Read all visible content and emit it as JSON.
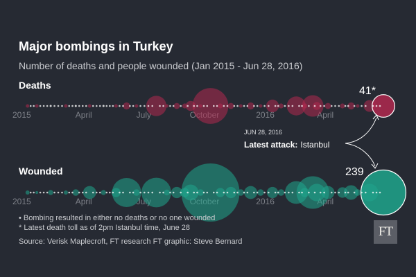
{
  "chart_data": {
    "type": "scatter",
    "title": "Major bombings in Turkey",
    "subtitle": "Number of deaths and people wounded (Jan 2015 - Jun 28, 2016)",
    "x_ticks": [
      "2015",
      "April",
      "July",
      "October",
      "2016",
      "April"
    ],
    "series": [
      {
        "name": "Deaths",
        "color": "#b0284f",
        "points": [
          {
            "date": "2015-01-06",
            "value": 1
          },
          {
            "date": "2015-01-20",
            "value": 1
          },
          {
            "date": "2015-02-10",
            "value": 0
          },
          {
            "date": "2015-03-05",
            "value": 1
          },
          {
            "date": "2015-03-20",
            "value": 0
          },
          {
            "date": "2015-04-10",
            "value": 1
          },
          {
            "date": "2015-05-01",
            "value": 0
          },
          {
            "date": "2015-05-20",
            "value": 1
          },
          {
            "date": "2015-06-05",
            "value": 4
          },
          {
            "date": "2015-06-20",
            "value": 1
          },
          {
            "date": "2015-07-20",
            "value": 33
          },
          {
            "date": "2015-08-05",
            "value": 1
          },
          {
            "date": "2015-08-20",
            "value": 3
          },
          {
            "date": "2015-09-01",
            "value": 2
          },
          {
            "date": "2015-09-10",
            "value": 8
          },
          {
            "date": "2015-09-25",
            "value": 1
          },
          {
            "date": "2015-10-10",
            "value": 103
          },
          {
            "date": "2015-10-25",
            "value": 2
          },
          {
            "date": "2015-11-10",
            "value": 3
          },
          {
            "date": "2015-11-25",
            "value": 1
          },
          {
            "date": "2015-12-10",
            "value": 4
          },
          {
            "date": "2015-12-25",
            "value": 1
          },
          {
            "date": "2016-01-12",
            "value": 13
          },
          {
            "date": "2016-01-25",
            "value": 2
          },
          {
            "date": "2016-02-17",
            "value": 29
          },
          {
            "date": "2016-03-01",
            "value": 2
          },
          {
            "date": "2016-03-13",
            "value": 37
          },
          {
            "date": "2016-03-19",
            "value": 5
          },
          {
            "date": "2016-04-05",
            "value": 3
          },
          {
            "date": "2016-04-27",
            "value": 2
          },
          {
            "date": "2016-05-10",
            "value": 4
          },
          {
            "date": "2016-05-20",
            "value": 1
          },
          {
            "date": "2016-06-07",
            "value": 11
          },
          {
            "date": "2016-06-28",
            "value": 41
          }
        ]
      },
      {
        "name": "Wounded",
        "color": "#1fa58c",
        "points": [
          {
            "date": "2015-01-06",
            "value": 2
          },
          {
            "date": "2015-01-20",
            "value": 1
          },
          {
            "date": "2015-02-10",
            "value": 3
          },
          {
            "date": "2015-03-05",
            "value": 2
          },
          {
            "date": "2015-03-20",
            "value": 5
          },
          {
            "date": "2015-04-10",
            "value": 20
          },
          {
            "date": "2015-05-01",
            "value": 3
          },
          {
            "date": "2015-05-20",
            "value": 10
          },
          {
            "date": "2015-06-05",
            "value": 100
          },
          {
            "date": "2015-06-20",
            "value": 5
          },
          {
            "date": "2015-07-20",
            "value": 104
          },
          {
            "date": "2015-08-05",
            "value": 4
          },
          {
            "date": "2015-08-20",
            "value": 15
          },
          {
            "date": "2015-09-01",
            "value": 10
          },
          {
            "date": "2015-09-10",
            "value": 30
          },
          {
            "date": "2015-09-25",
            "value": 5
          },
          {
            "date": "2015-10-10",
            "value": 400
          },
          {
            "date": "2015-10-25",
            "value": 10
          },
          {
            "date": "2015-11-10",
            "value": 15
          },
          {
            "date": "2015-11-25",
            "value": 5
          },
          {
            "date": "2015-12-10",
            "value": 20
          },
          {
            "date": "2015-12-25",
            "value": 5
          },
          {
            "date": "2016-01-12",
            "value": 15
          },
          {
            "date": "2016-01-25",
            "value": 5
          },
          {
            "date": "2016-02-17",
            "value": 61
          },
          {
            "date": "2016-03-01",
            "value": 10
          },
          {
            "date": "2016-03-13",
            "value": 125
          },
          {
            "date": "2016-03-19",
            "value": 36
          },
          {
            "date": "2016-04-05",
            "value": 20
          },
          {
            "date": "2016-04-27",
            "value": 13
          },
          {
            "date": "2016-05-10",
            "value": 25
          },
          {
            "date": "2016-05-20",
            "value": 5
          },
          {
            "date": "2016-06-07",
            "value": 36
          },
          {
            "date": "2016-06-28",
            "value": 239
          }
        ]
      }
    ],
    "latest": {
      "deaths_label": "41*",
      "wounded_label": "239",
      "date": "JUN 28, 2016",
      "label_bold": "Latest attack:",
      "label_place": "Istanbul"
    },
    "footnotes": [
      "• Bombing resulted in either no deaths or no one wounded",
      "* Latest death toll as of 2pm Istanbul time, June 28"
    ],
    "source": "Source: Verisk Maplecroft, FT research  FT graphic: Steve Bernard"
  },
  "colors": {
    "background": "#262a33",
    "deaths": "#b0284f",
    "wounded": "#1fa58c"
  },
  "logo": "FT"
}
